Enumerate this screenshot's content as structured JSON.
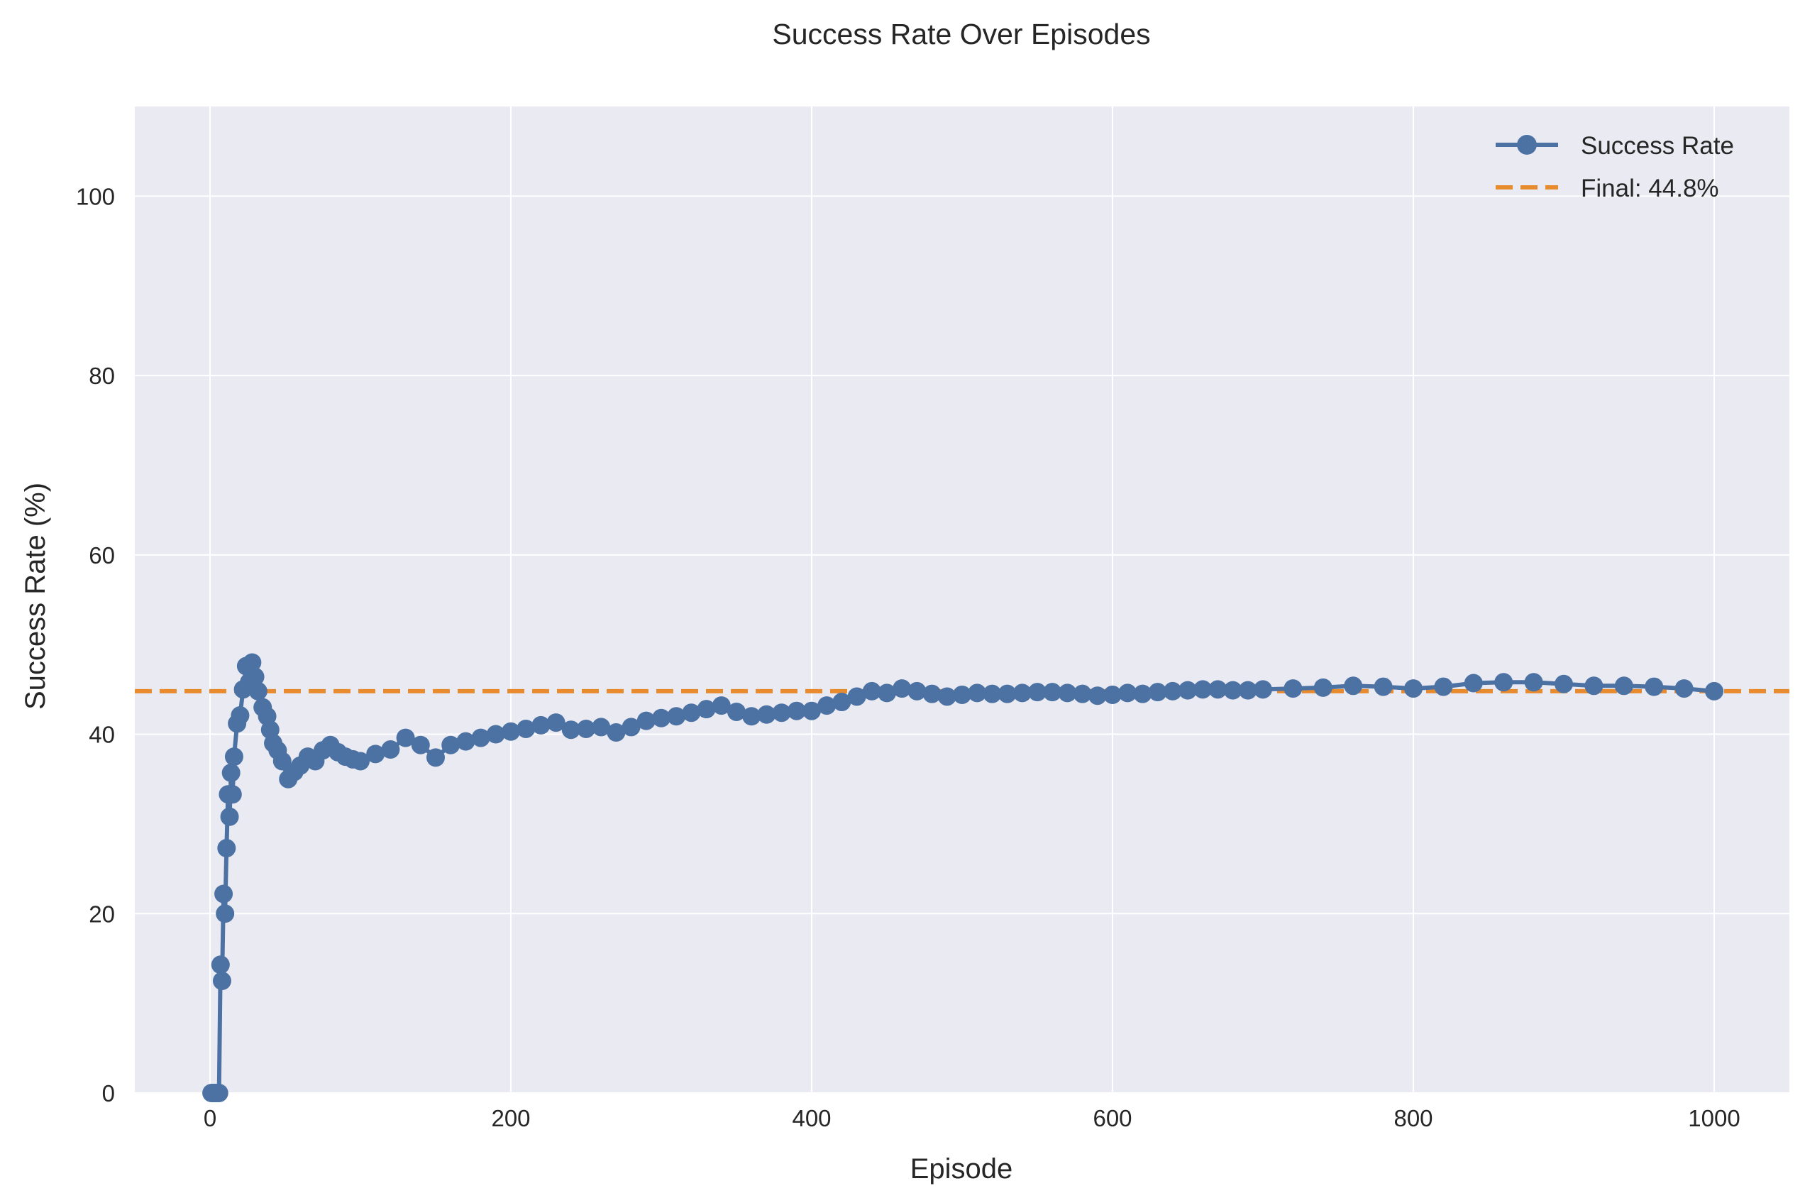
{
  "chart_data": {
    "type": "line",
    "title": "Success Rate Over Episodes",
    "xlabel": "Episode",
    "ylabel": "Success Rate (%)",
    "xlim": [
      -50,
      1050
    ],
    "ylim": [
      0,
      110
    ],
    "xticks": [
      0,
      200,
      400,
      600,
      800,
      1000
    ],
    "yticks": [
      0,
      20,
      40,
      60,
      80,
      100
    ],
    "grid": true,
    "legend_position": "top-right",
    "series": [
      {
        "name": "Success Rate",
        "color": "#4c72a4",
        "marker": "circle",
        "x": [
          1,
          2,
          3,
          4,
          5,
          6,
          7,
          8,
          9,
          10,
          11,
          12,
          13,
          14,
          15,
          16,
          18,
          20,
          22,
          24,
          26,
          28,
          30,
          32,
          35,
          38,
          40,
          42,
          45,
          48,
          52,
          56,
          60,
          65,
          70,
          75,
          80,
          85,
          90,
          95,
          100,
          110,
          120,
          130,
          140,
          150,
          160,
          170,
          180,
          190,
          200,
          210,
          220,
          230,
          240,
          250,
          260,
          270,
          280,
          290,
          300,
          310,
          320,
          330,
          340,
          350,
          360,
          370,
          380,
          390,
          400,
          410,
          420,
          430,
          440,
          450,
          460,
          470,
          480,
          490,
          500,
          510,
          520,
          530,
          540,
          550,
          560,
          570,
          580,
          590,
          600,
          610,
          620,
          630,
          640,
          650,
          660,
          670,
          680,
          690,
          700,
          720,
          740,
          760,
          780,
          800,
          820,
          840,
          860,
          880,
          900,
          920,
          940,
          960,
          980,
          1000
        ],
        "y": [
          0,
          0,
          0,
          0,
          0,
          0,
          14.3,
          12.5,
          22.2,
          20.0,
          27.3,
          33.3,
          30.8,
          35.7,
          33.3,
          37.5,
          41.2,
          42.1,
          45.0,
          47.6,
          45.8,
          48.0,
          46.4,
          44.8,
          43.0,
          42.0,
          40.5,
          39.0,
          38.2,
          37.0,
          35.0,
          35.8,
          36.5,
          37.5,
          37.0,
          38.2,
          38.8,
          38.0,
          37.5,
          37.2,
          37.0,
          37.8,
          38.3,
          39.6,
          38.8,
          37.4,
          38.8,
          39.2,
          39.6,
          40.0,
          40.3,
          40.6,
          41.0,
          41.3,
          40.5,
          40.6,
          40.8,
          40.2,
          40.8,
          41.5,
          41.8,
          42.0,
          42.4,
          42.8,
          43.2,
          42.5,
          42.0,
          42.2,
          42.4,
          42.6,
          42.6,
          43.2,
          43.6,
          44.2,
          44.8,
          44.6,
          45.1,
          44.8,
          44.5,
          44.2,
          44.4,
          44.6,
          44.5,
          44.5,
          44.6,
          44.7,
          44.7,
          44.6,
          44.5,
          44.3,
          44.4,
          44.6,
          44.5,
          44.7,
          44.8,
          44.9,
          45.0,
          45.0,
          44.9,
          44.9,
          45.0,
          45.1,
          45.2,
          45.4,
          45.3,
          45.1,
          45.3,
          45.7,
          45.8,
          45.8,
          45.6,
          45.4,
          45.4,
          45.3,
          45.1,
          44.8
        ]
      },
      {
        "name": "Final: 44.8%",
        "color": "#e88a2e",
        "style": "dashed",
        "y": 44.8
      }
    ]
  }
}
